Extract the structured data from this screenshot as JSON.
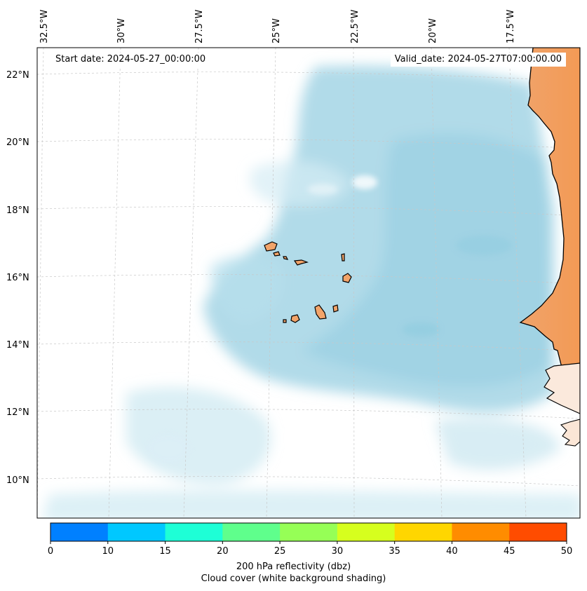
{
  "map": {
    "start_date": "Start date: 2024-05-27_00:00:00",
    "valid_date": "Valid_date: 2024-05-27T07:00:00.00",
    "lon_labels": [
      "32.5°W",
      "30°W",
      "27.5°W",
      "25°W",
      "22.5°W",
      "20°W",
      "17.5°W"
    ],
    "lat_labels": [
      "22°N",
      "20°N",
      "18°N",
      "16°N",
      "14°N",
      "12°N",
      "10°N"
    ],
    "colors": {
      "cloud": "#a6d5e6",
      "land": "#f2a46a",
      "coast": "#000000",
      "grid": "#bbbbbb"
    }
  },
  "colorbar": {
    "ticks": [
      "0",
      "10",
      "15",
      "20",
      "25",
      "30",
      "35",
      "40",
      "45",
      "50"
    ],
    "colors": [
      "#0080ff",
      "#00c8ff",
      "#1effd6",
      "#5fff8c",
      "#96ff56",
      "#d6ff1e",
      "#ffd600",
      "#ff8c00",
      "#ff4c00"
    ],
    "label": "200 hPa reflectivity (dbz)",
    "sublabel": "Cloud cover (white background shading)"
  }
}
